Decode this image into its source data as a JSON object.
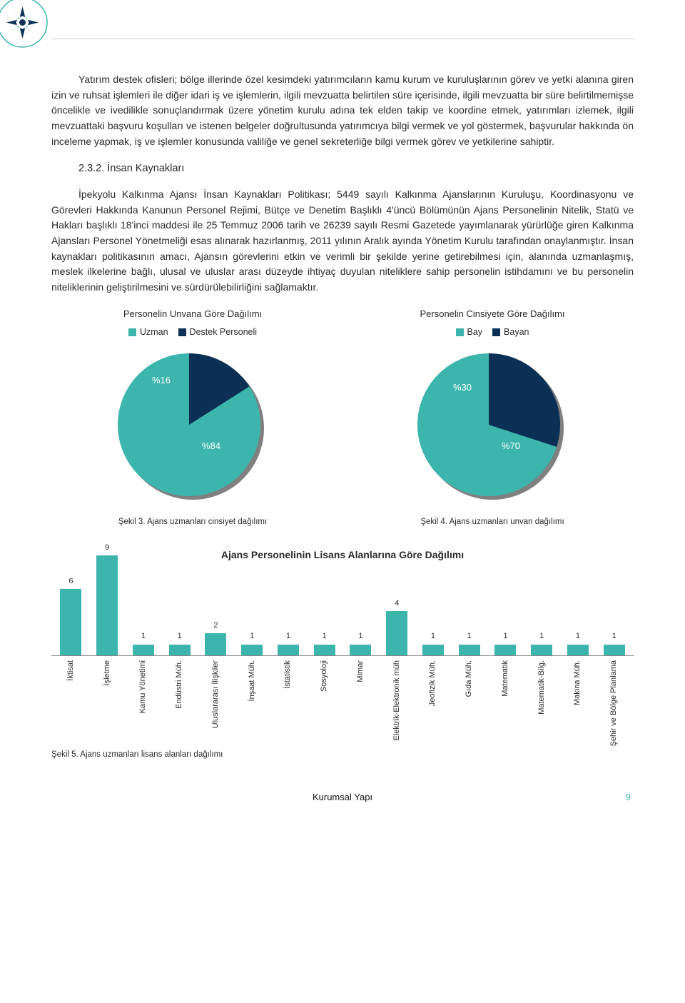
{
  "colors": {
    "teal": "#3cb5ac",
    "navy": "#0b2f55",
    "grey_shadow": "#808080",
    "text": "#2a2a2a",
    "page_accent": "#3cb5ac"
  },
  "paragraphs": {
    "p1": "Yatırım destek ofisleri; bölge illerinde özel kesimdeki yatırımcıların kamu kurum ve kuruluşlarının görev ve yetki alanına giren izin ve ruhsat işlemleri ile diğer idari iş ve işlemlerin, ilgili mevzuatta belirtilen süre içerisinde, ilgili mevzuatta bir süre belirtilmemişse öncelikle ve ivedilikle sonuçlandırmak üzere yönetim kurulu adına tek elden takip ve koordine etmek, yatırımları izlemek, ilgili mevzuattaki başvuru koşulları ve istenen belgeler doğrultusunda yatırımcıya bilgi vermek ve yol göstermek, başvurular hakkında ön inceleme yapmak, iş ve işlemler konusunda valiliğe ve genel sekreterliğe bilgi vermek görev ve yetkilerine sahiptir.",
    "heading": "2.3.2. İnsan Kaynakları",
    "p2": "İpekyolu Kalkınma Ajansı İnsan Kaynakları Politikası; 5449 sayılı Kalkınma Ajanslarının Kuruluşu, Koordinasyonu ve Görevleri Hakkında Kanunun Personel Rejimi, Bütçe ve Denetim Başlıklı 4'üncü Bölümünün Ajans Personelinin Nitelik, Statü ve Hakları başlıklı 18'inci maddesi ile 25 Temmuz 2006 tarih ve 26239 sayılı Resmi Gazetede yayımlanarak yürürlüğe giren Kalkınma Ajansları Personel Yönetmeliği esas alınarak hazırlanmış, 2011 yılının Aralık ayında Yönetim Kurulu tarafından onaylanmıştır. İnsan kaynakları politikasının amacı, Ajansın görevlerini etkin ve verimli bir şekilde yerine getirebilmesi için, alanında uzmanlaşmış, meslek ilkelerine bağlı, ulusal ve uluslar arası düzeyde ihtiyaç duyulan niteliklere sahip personelin istihdamını ve bu personelin niteliklerinin geliştirilmesini ve sürdürülebilirliğini sağlamaktır."
  },
  "pie_left": {
    "title": "Personelin Unvana Göre Dağılımı",
    "legend": [
      {
        "label": "Uzman",
        "color": "#3cb5ac"
      },
      {
        "label": "Destek Personeli",
        "color": "#0b2f55"
      }
    ],
    "slices": [
      {
        "label": "%16",
        "value": 16,
        "color": "#0b2f55"
      },
      {
        "label": "%84",
        "value": 84,
        "color": "#3cb5ac"
      }
    ],
    "caption": "Şekil 3. Ajans uzmanları cinsiyet dağılımı"
  },
  "pie_right": {
    "title": "Personelin Cinsiyete Göre Dağılımı",
    "legend": [
      {
        "label": "Bay",
        "color": "#3cb5ac"
      },
      {
        "label": "Bayan",
        "color": "#0b2f55"
      }
    ],
    "slices": [
      {
        "label": "%30",
        "value": 30,
        "color": "#0b2f55"
      },
      {
        "label": "%70",
        "value": 70,
        "color": "#3cb5ac"
      }
    ],
    "caption": "Şekil 4. Ajans uzmanları unvan dağılımı"
  },
  "bar_chart": {
    "title": "Ajans Personelinin Lisans Alanlarına Göre Dağılımı",
    "bar_color": "#3cb5ac",
    "max_value": 9,
    "data": [
      {
        "label": "İktisat",
        "value": 6
      },
      {
        "label": "İşletme",
        "value": 9
      },
      {
        "label": "Kamu Yönetimi",
        "value": 1
      },
      {
        "label": "Endüstri Müh.",
        "value": 1
      },
      {
        "label": "Uluslararası İlişkiler",
        "value": 2
      },
      {
        "label": "İnşaat Müh.",
        "value": 1
      },
      {
        "label": "İstatistik",
        "value": 1
      },
      {
        "label": "Sosyoloji",
        "value": 1
      },
      {
        "label": "Mimar",
        "value": 1
      },
      {
        "label": "Elektrik-Elektronik müh",
        "value": 4
      },
      {
        "label": "Jeofizik Müh.",
        "value": 1
      },
      {
        "label": "Gıda Müh.",
        "value": 1
      },
      {
        "label": "Matematik",
        "value": 1
      },
      {
        "label": "Matematik-Bilg.",
        "value": 1
      },
      {
        "label": "Makina Müh.",
        "value": 1
      },
      {
        "label": "Şehir ve Bölge Planlama",
        "value": 1
      }
    ],
    "caption": "Şekil 5. Ajans uzmanları lisans alanları dağılımı"
  },
  "footer": {
    "center": "Kurumsal Yapı",
    "page": "9"
  }
}
